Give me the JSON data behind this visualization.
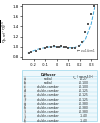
{
  "title": "",
  "ylabel": "$\\frac{\\eta_p}{\\eta_{p,ref} \\cdot \\eta_v^{0.5}}$",
  "xlabel": "",
  "xlim": [
    -0.3,
    0.35
  ],
  "ylim": [
    0.75,
    1.85
  ],
  "scatter_x": [
    -0.24,
    -0.22,
    -0.18,
    -0.14,
    -0.1,
    -0.08,
    -0.05,
    -0.02,
    0.0,
    0.02,
    0.04,
    0.06,
    0.08,
    0.1,
    0.13,
    0.16,
    0.19,
    0.22,
    0.25,
    0.27,
    0.3,
    0.32
  ],
  "scatter_y": [
    0.88,
    0.9,
    0.92,
    0.95,
    0.97,
    0.99,
    1.0,
    1.01,
    1.0,
    1.0,
    1.01,
    1.0,
    0.99,
    0.98,
    0.97,
    0.98,
    1.02,
    1.1,
    1.3,
    1.45,
    1.65,
    1.8
  ],
  "curve_x": [
    -0.25,
    -0.2,
    -0.15,
    -0.1,
    -0.05,
    0.0,
    0.05,
    0.1,
    0.15,
    0.2,
    0.25,
    0.3,
    0.33
  ],
  "curve_y": [
    0.87,
    0.92,
    0.96,
    0.98,
    1.0,
    1.0,
    0.99,
    0.98,
    0.98,
    1.02,
    1.15,
    1.45,
    1.78
  ],
  "scatter_color": "#555555",
  "curve_color": "#44AADD",
  "marker_size": 3,
  "table_rows": [
    [
      "a",
      "radial",
      "-0.27"
    ],
    [
      "b",
      "radial",
      "-0.100"
    ],
    [
      "c",
      "double-camber",
      "-0.100"
    ],
    [
      "d",
      "double-camber",
      "-0.125"
    ],
    [
      "e",
      "double-camber",
      "-0.125"
    ],
    [
      "f",
      "double-camber",
      "-0.125"
    ],
    [
      "g",
      "double-camber",
      "-0.380"
    ],
    [
      "h",
      "double-camber",
      "-0.380"
    ],
    [
      "i",
      "double-camber",
      "-0.380"
    ],
    [
      "j",
      "double-camber",
      "-1.40"
    ],
    [
      "k",
      "double-camber",
      "-1.40"
    ]
  ],
  "table_box_color": "#AADDEE",
  "table_bg_color": "#EEF8FC",
  "bg_color": "#ffffff"
}
